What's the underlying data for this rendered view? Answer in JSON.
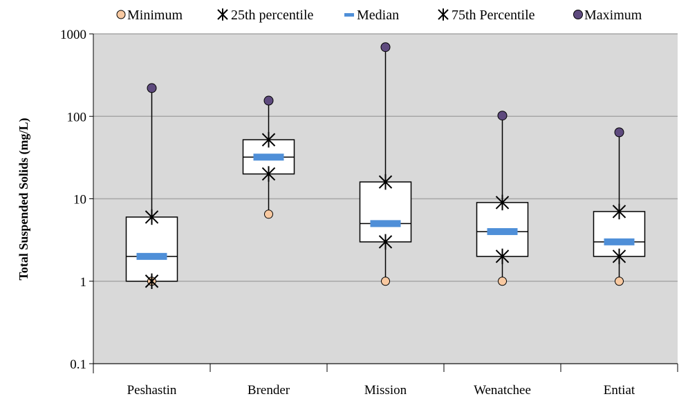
{
  "chart_data": {
    "type": "box",
    "title": "",
    "xlabel": "",
    "ylabel": "Total Suspended Solids (mg/L)",
    "yscale": "log",
    "ylim": [
      0.1,
      1000
    ],
    "yticks": [
      "0.1",
      "1",
      "10",
      "100",
      "1000"
    ],
    "grid": "horizontal",
    "legend_position": "top",
    "legend": {
      "minimum": "Minimum",
      "p25": "25th percentile",
      "median": "Median",
      "p75": "75th Percentile",
      "maximum": "Maximum"
    },
    "categories": [
      "Peshastin",
      "Brender",
      "Mission",
      "Wenatchee",
      "Entiat"
    ],
    "minimum": [
      1,
      6.5,
      1,
      1,
      1
    ],
    "p25": [
      1,
      20,
      3,
      2,
      2
    ],
    "median": [
      2,
      32,
      5,
      4,
      3
    ],
    "p75": [
      6,
      52,
      16,
      9,
      7
    ],
    "maximum": [
      220,
      155,
      690,
      102,
      64
    ],
    "colors": {
      "minimum": "#F8C9A1",
      "maximum": "#5E4A7E",
      "median": "#4F8FD8",
      "plot_background": "#D9D9D9",
      "grid": "#A6A6A6"
    }
  }
}
